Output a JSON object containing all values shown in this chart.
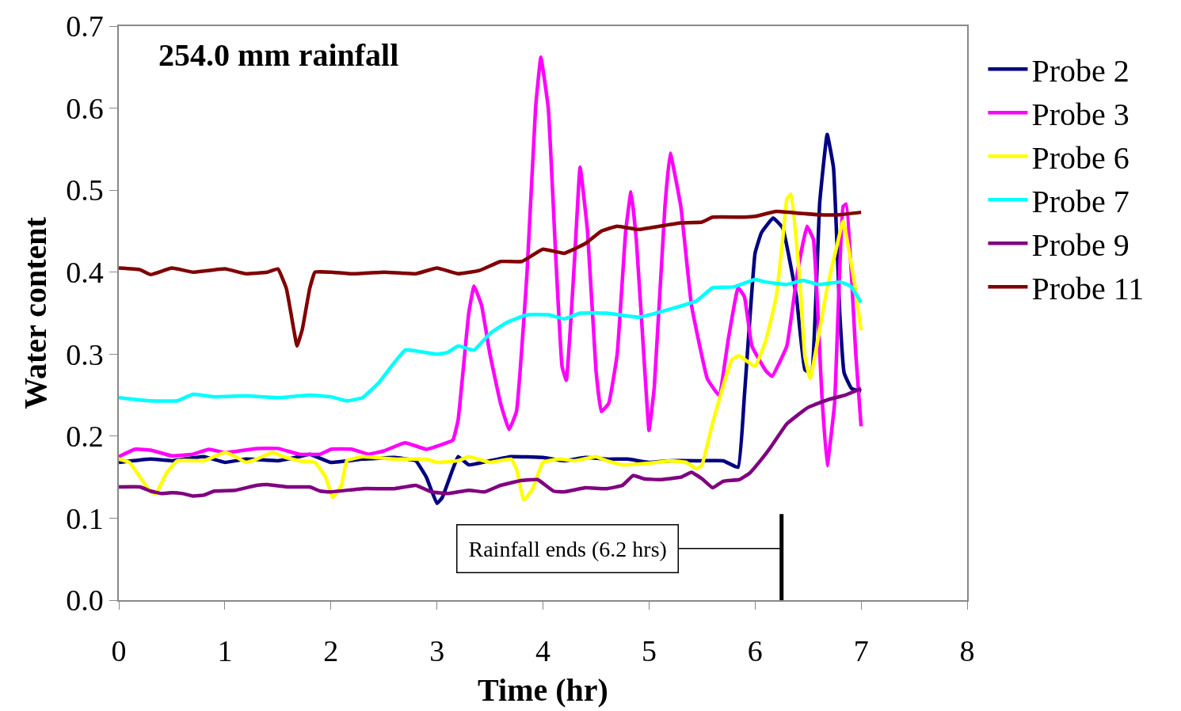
{
  "chart_data": {
    "type": "line",
    "title": "254.0 mm rainfall",
    "xlabel": "Time (hr)",
    "ylabel": "Water content",
    "xlim": [
      0,
      8
    ],
    "xticks": [
      0,
      1,
      2,
      3,
      4,
      5,
      6,
      7,
      8
    ],
    "ylim": [
      0,
      0.7
    ],
    "yticks": [
      {
        "value": 0,
        "label": "0.0"
      },
      0.1,
      0.2,
      0.3,
      0.4,
      0.5,
      0.6,
      0.7
    ],
    "legend": "right",
    "line_style": "solid",
    "marker": "none",
    "ref_lines": [
      {
        "axis": "x",
        "value": 6.25,
        "label": "Rainfall ends (6.2 hrs)",
        "color": "#000000"
      }
    ],
    "series": [
      {
        "name": "Probe 2",
        "color": "#000080",
        "x": [
          0,
          0.3,
          0.5,
          0.8,
          1.0,
          1.2,
          1.5,
          1.7,
          1.8,
          2.0,
          2.3,
          2.6,
          2.8,
          2.9,
          3.0,
          3.05,
          3.15,
          3.2,
          3.3,
          3.5,
          3.7,
          4.0,
          4.2,
          4.4,
          4.6,
          4.8,
          5.0,
          5.2,
          5.5,
          5.7,
          5.84,
          5.9,
          6.0,
          6.06,
          6.17,
          6.26,
          6.39,
          6.47,
          6.53,
          6.61,
          6.68,
          6.74,
          6.8,
          6.84,
          6.91,
          7.0
        ],
        "values": [
          0.168,
          0.172,
          0.17,
          0.175,
          0.168,
          0.172,
          0.17,
          0.175,
          0.178,
          0.168,
          0.172,
          0.174,
          0.17,
          0.15,
          0.118,
          0.125,
          0.16,
          0.175,
          0.165,
          0.17,
          0.175,
          0.174,
          0.17,
          0.174,
          0.172,
          0.172,
          0.168,
          0.17,
          0.17,
          0.17,
          0.162,
          0.25,
          0.423,
          0.448,
          0.466,
          0.454,
          0.37,
          0.281,
          0.277,
          0.485,
          0.568,
          0.527,
          0.347,
          0.277,
          0.258,
          0.255
        ]
      },
      {
        "name": "Probe 3",
        "color": "#ff00ff",
        "x": [
          0,
          0.15,
          0.3,
          0.5,
          0.7,
          0.85,
          1.0,
          1.3,
          1.5,
          1.7,
          1.9,
          2.0,
          2.2,
          2.35,
          2.5,
          2.7,
          2.9,
          3.05,
          3.15,
          3.2,
          3.3,
          3.35,
          3.42,
          3.5,
          3.6,
          3.68,
          3.75,
          3.85,
          3.93,
          3.98,
          4.05,
          4.12,
          4.18,
          4.22,
          4.3,
          4.35,
          4.42,
          4.5,
          4.55,
          4.62,
          4.7,
          4.78,
          4.83,
          4.88,
          4.97,
          5.0,
          5.05,
          5.15,
          5.2,
          5.3,
          5.4,
          5.55,
          5.66,
          5.75,
          5.84,
          5.9,
          5.97,
          6.1,
          6.16,
          6.3,
          6.4,
          6.49,
          6.55,
          6.63,
          6.68,
          6.75,
          6.83,
          6.86,
          6.95,
          7.0
        ],
        "values": [
          0.175,
          0.184,
          0.183,
          0.176,
          0.178,
          0.184,
          0.18,
          0.185,
          0.185,
          0.178,
          0.178,
          0.184,
          0.184,
          0.178,
          0.182,
          0.192,
          0.184,
          0.19,
          0.195,
          0.22,
          0.35,
          0.383,
          0.36,
          0.3,
          0.24,
          0.208,
          0.23,
          0.4,
          0.6,
          0.662,
          0.6,
          0.42,
          0.285,
          0.268,
          0.42,
          0.528,
          0.45,
          0.28,
          0.23,
          0.24,
          0.3,
          0.45,
          0.498,
          0.44,
          0.26,
          0.207,
          0.26,
          0.48,
          0.545,
          0.48,
          0.36,
          0.27,
          0.25,
          0.32,
          0.381,
          0.37,
          0.31,
          0.28,
          0.273,
          0.31,
          0.4,
          0.456,
          0.44,
          0.25,
          0.164,
          0.24,
          0.48,
          0.483,
          0.3,
          0.212
        ]
      },
      {
        "name": "Probe 6",
        "color": "#ffff00",
        "x": [
          0,
          0.1,
          0.2,
          0.3,
          0.35,
          0.45,
          0.55,
          0.8,
          0.9,
          1.0,
          1.1,
          1.2,
          1.3,
          1.45,
          1.55,
          1.7,
          1.85,
          1.95,
          2.02,
          2.1,
          2.15,
          2.3,
          2.6,
          2.9,
          3.0,
          3.2,
          3.3,
          3.5,
          3.7,
          3.75,
          3.82,
          3.9,
          4.0,
          4.15,
          4.3,
          4.5,
          4.6,
          4.75,
          5.0,
          5.2,
          5.35,
          5.45,
          5.5,
          5.6,
          5.78,
          5.85,
          6.0,
          6.1,
          6.2,
          6.26,
          6.3,
          6.34,
          6.42,
          6.47,
          6.52,
          6.59,
          6.68,
          6.77,
          6.83,
          6.88,
          6.94,
          7.0
        ],
        "values": [
          0.172,
          0.168,
          0.15,
          0.132,
          0.13,
          0.155,
          0.17,
          0.17,
          0.175,
          0.18,
          0.175,
          0.168,
          0.172,
          0.18,
          0.175,
          0.17,
          0.168,
          0.15,
          0.125,
          0.14,
          0.17,
          0.175,
          0.172,
          0.172,
          0.168,
          0.17,
          0.175,
          0.168,
          0.172,
          0.16,
          0.122,
          0.135,
          0.168,
          0.172,
          0.17,
          0.175,
          0.17,
          0.165,
          0.167,
          0.17,
          0.168,
          0.16,
          0.165,
          0.216,
          0.293,
          0.298,
          0.285,
          0.316,
          0.37,
          0.439,
          0.489,
          0.495,
          0.393,
          0.297,
          0.27,
          0.316,
          0.381,
          0.431,
          0.462,
          0.431,
          0.385,
          0.329
        ]
      },
      {
        "name": "Probe 7",
        "color": "#00ffff",
        "x": [
          0,
          0.3,
          0.55,
          0.7,
          0.9,
          1.2,
          1.5,
          1.8,
          2.0,
          2.15,
          2.3,
          2.45,
          2.6,
          2.7,
          2.8,
          3.0,
          3.1,
          3.2,
          3.35,
          3.5,
          3.65,
          3.85,
          4.05,
          4.2,
          4.35,
          4.6,
          4.9,
          5.2,
          5.45,
          5.6,
          5.8,
          6.0,
          6.1,
          6.3,
          6.45,
          6.6,
          6.8,
          6.9,
          7.0
        ],
        "values": [
          0.247,
          0.243,
          0.243,
          0.251,
          0.248,
          0.249,
          0.247,
          0.25,
          0.248,
          0.243,
          0.247,
          0.265,
          0.29,
          0.305,
          0.304,
          0.3,
          0.302,
          0.31,
          0.305,
          0.325,
          0.338,
          0.348,
          0.348,
          0.343,
          0.35,
          0.35,
          0.345,
          0.355,
          0.365,
          0.381,
          0.382,
          0.391,
          0.388,
          0.385,
          0.39,
          0.385,
          0.388,
          0.383,
          0.363
        ]
      },
      {
        "name": "Probe 9",
        "color": "#800080",
        "x": [
          0,
          0.2,
          0.3,
          0.4,
          0.5,
          0.6,
          0.7,
          0.8,
          0.9,
          1.1,
          1.3,
          1.4,
          1.6,
          1.8,
          1.9,
          2.0,
          2.3,
          2.6,
          2.8,
          2.95,
          3.1,
          3.3,
          3.45,
          3.6,
          3.8,
          3.95,
          4.1,
          4.2,
          4.4,
          4.6,
          4.75,
          4.85,
          4.95,
          5.1,
          5.3,
          5.4,
          5.5,
          5.6,
          5.7,
          5.85,
          5.95,
          6.05,
          6.15,
          6.3,
          6.5,
          6.7,
          6.85,
          7.0
        ],
        "values": [
          0.138,
          0.138,
          0.133,
          0.13,
          0.131,
          0.13,
          0.127,
          0.128,
          0.133,
          0.134,
          0.14,
          0.141,
          0.138,
          0.138,
          0.133,
          0.132,
          0.136,
          0.136,
          0.14,
          0.132,
          0.13,
          0.134,
          0.132,
          0.14,
          0.146,
          0.147,
          0.133,
          0.132,
          0.137,
          0.136,
          0.14,
          0.152,
          0.148,
          0.147,
          0.15,
          0.156,
          0.148,
          0.137,
          0.145,
          0.147,
          0.155,
          0.17,
          0.187,
          0.215,
          0.235,
          0.245,
          0.25,
          0.258
        ]
      },
      {
        "name": "Probe 11",
        "color": "#800000",
        "x": [
          0,
          0.2,
          0.3,
          0.5,
          0.7,
          1.0,
          1.2,
          1.4,
          1.5,
          1.58,
          1.65,
          1.68,
          1.73,
          1.8,
          1.85,
          2.0,
          2.2,
          2.5,
          2.8,
          3.0,
          3.2,
          3.4,
          3.6,
          3.8,
          4.0,
          4.2,
          4.4,
          4.55,
          4.7,
          4.9,
          5.1,
          5.3,
          5.5,
          5.6,
          5.9,
          6.0,
          6.2,
          6.4,
          6.6,
          6.8,
          7.0
        ],
        "values": [
          0.405,
          0.403,
          0.397,
          0.405,
          0.4,
          0.404,
          0.398,
          0.4,
          0.404,
          0.38,
          0.33,
          0.31,
          0.33,
          0.38,
          0.4,
          0.4,
          0.398,
          0.4,
          0.398,
          0.405,
          0.398,
          0.402,
          0.413,
          0.413,
          0.428,
          0.423,
          0.435,
          0.45,
          0.456,
          0.452,
          0.456,
          0.46,
          0.461,
          0.467,
          0.467,
          0.468,
          0.474,
          0.472,
          0.47,
          0.47,
          0.473
        ]
      }
    ]
  }
}
